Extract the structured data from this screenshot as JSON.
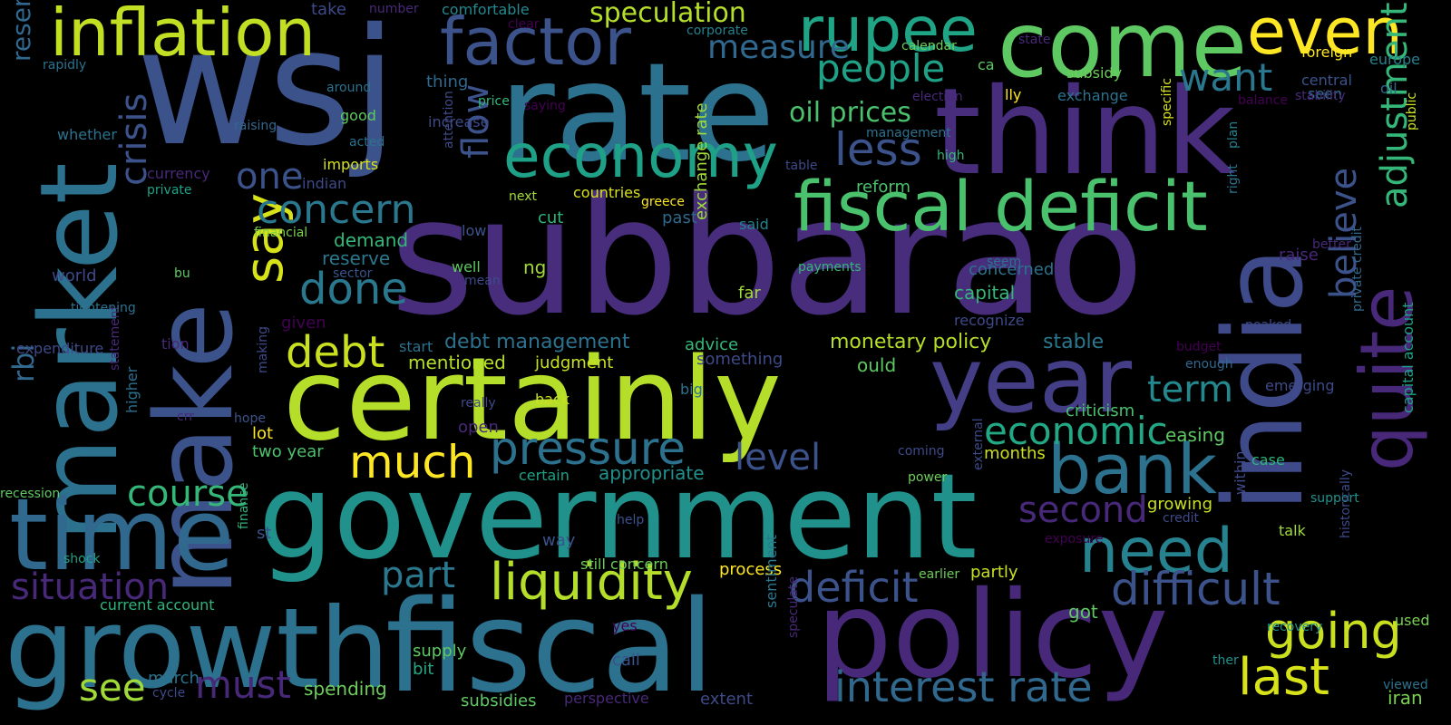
{
  "palette": [
    "#440154",
    "#46327e",
    "#365c8d",
    "#277f8e",
    "#1fa187",
    "#4ac16d",
    "#a0da39",
    "#fde725"
  ],
  "words": [
    {
      "text": "subbarao",
      "color": "#472d7b"
    },
    {
      "text": "wsj",
      "color": "#3b528b"
    },
    {
      "text": "government",
      "color": "#21918c"
    },
    {
      "text": "certainly",
      "color": "#b5de2b"
    },
    {
      "text": "rate",
      "color": "#2c728e"
    },
    {
      "text": "think",
      "color": "#472d7b"
    },
    {
      "text": "come",
      "color": "#5ec962"
    },
    {
      "text": "fiscal",
      "color": "#2c728e"
    },
    {
      "text": "policy",
      "color": "#482878"
    },
    {
      "text": "growth",
      "color": "#2c728e"
    },
    {
      "text": "india",
      "color": "#3e4a89"
    },
    {
      "text": "market",
      "color": "#2c728e"
    },
    {
      "text": "make",
      "color": "#3b528b"
    },
    {
      "text": "year",
      "color": "#433e85"
    },
    {
      "text": "time",
      "color": "#31688e"
    },
    {
      "text": "fiscal deficit",
      "color": "#4ac16d"
    },
    {
      "text": "inflation",
      "color": "#c2df23"
    },
    {
      "text": "factor",
      "color": "#3b528b"
    },
    {
      "text": "rupee",
      "color": "#20a486"
    },
    {
      "text": "even",
      "color": "#fde725"
    },
    {
      "text": "economy",
      "color": "#1fa187"
    },
    {
      "text": "bank",
      "color": "#2c728e"
    },
    {
      "text": "need",
      "color": "#26828e"
    },
    {
      "text": "quite",
      "color": "#482878"
    },
    {
      "text": "liquidity",
      "color": "#b5de2b"
    },
    {
      "text": "pressure",
      "color": "#2c728e"
    },
    {
      "text": "difficult",
      "color": "#3b528b"
    },
    {
      "text": "last",
      "color": "#d8e219"
    },
    {
      "text": "going",
      "color": "#c8e020"
    },
    {
      "text": "deficit",
      "color": "#3b528b"
    },
    {
      "text": "interest rate",
      "color": "#31688e"
    },
    {
      "text": "economic",
      "color": "#22a884"
    },
    {
      "text": "much",
      "color": "#fde725"
    },
    {
      "text": "debt",
      "color": "#c8e020"
    },
    {
      "text": "done",
      "color": "#2a788e"
    },
    {
      "text": "say",
      "color": "#d8e219"
    },
    {
      "text": "concern",
      "color": "#2a788e"
    },
    {
      "text": "crisis",
      "color": "#3b528b"
    },
    {
      "text": "situation",
      "color": "#482878"
    },
    {
      "text": "course",
      "color": "#35b779"
    },
    {
      "text": "must",
      "color": "#482878"
    },
    {
      "text": "see",
      "color": "#a0da39"
    },
    {
      "text": "part",
      "color": "#2a788e"
    },
    {
      "text": "level",
      "color": "#3b528b"
    },
    {
      "text": "second",
      "color": "#482878"
    },
    {
      "text": "term",
      "color": "#23898e"
    },
    {
      "text": "believe",
      "color": "#3b528b"
    },
    {
      "text": "adjustment",
      "color": "#35b779"
    },
    {
      "text": "people",
      "color": "#1fa187"
    },
    {
      "text": "want",
      "color": "#2a788e"
    },
    {
      "text": "less",
      "color": "#3b528b"
    },
    {
      "text": "measure",
      "color": "#31688e"
    },
    {
      "text": "speculation",
      "color": "#b5de2b"
    },
    {
      "text": "oil prices",
      "color": "#4ac16d"
    },
    {
      "text": "flow",
      "color": "#3b528b"
    },
    {
      "text": "one",
      "color": "#3b528b"
    },
    {
      "text": "rbi",
      "color": "#31688e"
    },
    {
      "text": "reserve bank",
      "color": "#31688e"
    },
    {
      "text": "debt management",
      "color": "#2c728e"
    },
    {
      "text": "monetary policy",
      "color": "#b5de2b"
    },
    {
      "text": "stable",
      "color": "#2a788e"
    },
    {
      "text": "mentioned",
      "color": "#b5de2b"
    },
    {
      "text": "judgment",
      "color": "#c8e020"
    },
    {
      "text": "demand",
      "color": "#35b779"
    },
    {
      "text": "reserve",
      "color": "#2a788e"
    },
    {
      "text": "appropriate",
      "color": "#21918c"
    },
    {
      "text": "certain",
      "color": "#1fa187"
    },
    {
      "text": "exchange rate",
      "color": "#a0da39"
    },
    {
      "text": "capital",
      "color": "#35b779"
    },
    {
      "text": "concerned",
      "color": "#2c728e"
    },
    {
      "text": "recognize",
      "color": "#3e4a89"
    },
    {
      "text": "advice",
      "color": "#35b779"
    },
    {
      "text": "something",
      "color": "#3e4a89"
    },
    {
      "text": "ould",
      "color": "#5ec962"
    },
    {
      "text": "criticism",
      "color": "#4ac16d"
    },
    {
      "text": "easing",
      "color": "#5ec962"
    },
    {
      "text": "months",
      "color": "#c8e020"
    },
    {
      "text": "growing",
      "color": "#c8e020"
    },
    {
      "text": "lot",
      "color": "#fde725"
    },
    {
      "text": "two year",
      "color": "#4ac16d"
    },
    {
      "text": "still concern",
      "color": "#6ccd5a"
    },
    {
      "text": "process",
      "color": "#fde725"
    },
    {
      "text": "partly",
      "color": "#c8e020"
    },
    {
      "text": "got",
      "color": "#5ec962"
    },
    {
      "text": "current account",
      "color": "#2fb47c"
    },
    {
      "text": "spending",
      "color": "#6ccd5a"
    },
    {
      "text": "supply",
      "color": "#5ec962"
    },
    {
      "text": "subsidies",
      "color": "#5ec962"
    },
    {
      "text": "perspective",
      "color": "#482878"
    },
    {
      "text": "extent",
      "color": "#3e4a89"
    },
    {
      "text": "march",
      "color": "#2c728e"
    },
    {
      "text": "cycle",
      "color": "#3e4a89"
    },
    {
      "text": "bit",
      "color": "#22a884"
    },
    {
      "text": "call",
      "color": "#3b528b"
    },
    {
      "text": "yes",
      "color": "#440154"
    },
    {
      "text": "sentiment",
      "color": "#2a788e"
    },
    {
      "text": "speculate",
      "color": "#482878"
    },
    {
      "text": "recession",
      "color": "#5ec962"
    },
    {
      "text": "shock",
      "color": "#1fa187"
    },
    {
      "text": "finance",
      "color": "#2fb47c"
    },
    {
      "text": "help",
      "color": "#3b528b"
    },
    {
      "text": "way",
      "color": "#3b528b"
    },
    {
      "text": "st",
      "color": "#3b528b"
    },
    {
      "text": "crr",
      "color": "#482878"
    },
    {
      "text": "hope",
      "color": "#3b528b"
    },
    {
      "text": "higher",
      "color": "#2c728e"
    },
    {
      "text": "statement",
      "color": "#482878"
    },
    {
      "text": "making",
      "color": "#3e4a89"
    },
    {
      "text": "expenditure",
      "color": "#3e4a89"
    },
    {
      "text": "tion",
      "color": "#482878"
    },
    {
      "text": "given",
      "color": "#440154"
    },
    {
      "text": "tightening",
      "color": "#2c728e"
    },
    {
      "text": "world",
      "color": "#3e4a89"
    },
    {
      "text": "bu",
      "color": "#5ec962"
    },
    {
      "text": "sector",
      "color": "#3b528b"
    },
    {
      "text": "financial",
      "color": "#7ad151"
    },
    {
      "text": "private",
      "color": "#1fa187"
    },
    {
      "text": "currency",
      "color": "#482878"
    },
    {
      "text": "indian",
      "color": "#3e4a89"
    },
    {
      "text": "imports",
      "color": "#d8e219"
    },
    {
      "text": "acted",
      "color": "#2c728e"
    },
    {
      "text": "whether",
      "color": "#2c728e"
    },
    {
      "text": "raising",
      "color": "#31688e"
    },
    {
      "text": "good",
      "color": "#5ec962"
    },
    {
      "text": "around",
      "color": "#2c728e"
    },
    {
      "text": "rapidly",
      "color": "#2c728e"
    },
    {
      "text": "take",
      "color": "#3e4a89"
    },
    {
      "text": "number",
      "color": "#482878"
    },
    {
      "text": "comfortable",
      "color": "#23898e"
    },
    {
      "text": "clear",
      "color": "#440154"
    },
    {
      "text": "corporate",
      "color": "#26828e"
    },
    {
      "text": "thing",
      "color": "#31688e"
    },
    {
      "text": "increase",
      "color": "#3e4a89"
    },
    {
      "text": "saying",
      "color": "#440154"
    },
    {
      "text": "price",
      "color": "#35b779"
    },
    {
      "text": "attention",
      "color": "#3e4a89"
    },
    {
      "text": "next",
      "color": "#a0da39"
    },
    {
      "text": "countries",
      "color": "#d8e219"
    },
    {
      "text": "greece",
      "color": "#fde725"
    },
    {
      "text": "cut",
      "color": "#2fb47c"
    },
    {
      "text": "low",
      "color": "#3b528b"
    },
    {
      "text": "well",
      "color": "#5ec962"
    },
    {
      "text": "ng",
      "color": "#a0da39"
    },
    {
      "text": "mean",
      "color": "#3e4a89"
    },
    {
      "text": "start",
      "color": "#2c728e"
    },
    {
      "text": "past",
      "color": "#31688e"
    },
    {
      "text": "said",
      "color": "#26828e"
    },
    {
      "text": "reform",
      "color": "#4ac16d"
    },
    {
      "text": "table",
      "color": "#3e4a89"
    },
    {
      "text": "payments",
      "color": "#35b779"
    },
    {
      "text": "far",
      "color": "#a0da39"
    },
    {
      "text": "big",
      "color": "#2c728e"
    },
    {
      "text": "back",
      "color": "#c8e020"
    },
    {
      "text": "really",
      "color": "#3e4a89"
    },
    {
      "text": "open",
      "color": "#482878"
    },
    {
      "text": "coming",
      "color": "#3e4a89"
    },
    {
      "text": "power",
      "color": "#6ccd5a"
    },
    {
      "text": "external",
      "color": "#3e4a89"
    },
    {
      "text": "exposure",
      "color": "#440154"
    },
    {
      "text": "earlier",
      "color": "#6ccd5a"
    },
    {
      "text": "calendar",
      "color": "#6ccd5a"
    },
    {
      "text": "state",
      "color": "#482878"
    },
    {
      "text": "ca",
      "color": "#5ec962"
    },
    {
      "text": "lly",
      "color": "#fde725"
    },
    {
      "text": "election",
      "color": "#482878"
    },
    {
      "text": "exchange",
      "color": "#2c728e"
    },
    {
      "text": "subsidy",
      "color": "#6ccd5a"
    },
    {
      "text": "management",
      "color": "#2c728e"
    },
    {
      "text": "high",
      "color": "#35b779"
    },
    {
      "text": "seem",
      "color": "#2c728e"
    },
    {
      "text": "foreign",
      "color": "#fde725"
    },
    {
      "text": "seen",
      "color": "#2c728e"
    },
    {
      "text": "europe",
      "color": "#26828e"
    },
    {
      "text": "central",
      "color": "#3b528b"
    },
    {
      "text": "oil",
      "color": "#31688e"
    },
    {
      "text": "balance",
      "color": "#440154"
    },
    {
      "text": "stability",
      "color": "#482878"
    },
    {
      "text": "specific",
      "color": "#d8e219"
    },
    {
      "text": "right",
      "color": "#2c728e"
    },
    {
      "text": "plan",
      "color": "#26828e"
    },
    {
      "text": "public",
      "color": "#c8e020"
    },
    {
      "text": "better",
      "color": "#482878"
    },
    {
      "text": "raise",
      "color": "#482878"
    },
    {
      "text": "private credit",
      "color": "#31688e"
    },
    {
      "text": "peaked",
      "color": "#3e4a89"
    },
    {
      "text": "budget",
      "color": "#440154"
    },
    {
      "text": "enough",
      "color": "#31688e"
    },
    {
      "text": "emerging",
      "color": "#3e4a89"
    },
    {
      "text": "case",
      "color": "#2fb47c"
    },
    {
      "text": "capital account",
      "color": "#1fa187"
    },
    {
      "text": "support",
      "color": "#21918c"
    },
    {
      "text": "within",
      "color": "#3e4a89"
    },
    {
      "text": "credit",
      "color": "#3e4a89"
    },
    {
      "text": "talk",
      "color": "#a0da39"
    },
    {
      "text": "historically",
      "color": "#3e4a89"
    },
    {
      "text": "recovery",
      "color": "#21918c"
    },
    {
      "text": "used",
      "color": "#7ad151"
    },
    {
      "text": "ther",
      "color": "#21918c"
    },
    {
      "text": "viewed",
      "color": "#2c728e"
    },
    {
      "text": "iran",
      "color": "#7ad151"
    }
  ]
}
